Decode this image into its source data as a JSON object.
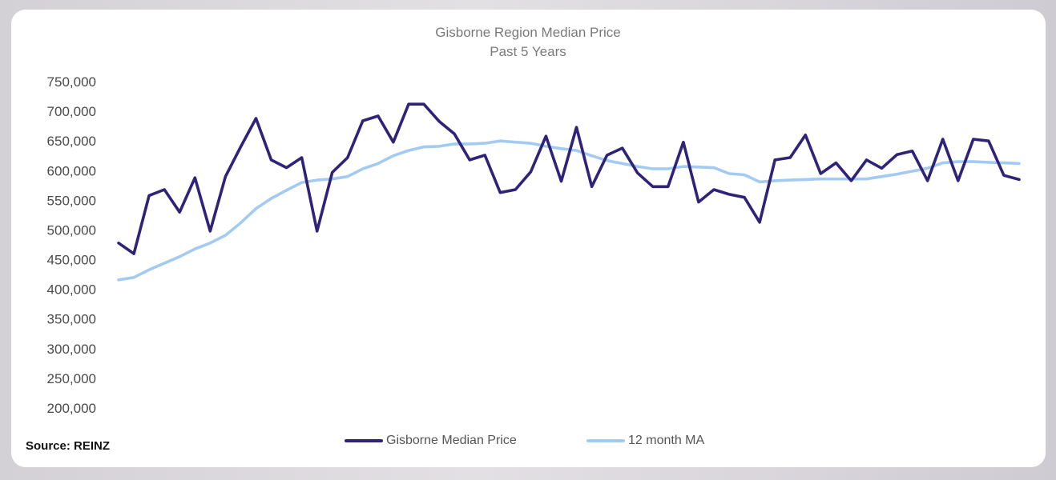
{
  "chart_data": {
    "type": "line",
    "title": "Gisborne Region Median Price",
    "subtitle": "Past 5 Years",
    "source": "Source: REINZ",
    "ylim": [
      200000,
      750000
    ],
    "yticks": [
      "750,000",
      "700,000",
      "650,000",
      "600,000",
      "550,000",
      "500,000",
      "450,000",
      "400,000",
      "350,000",
      "300,000",
      "250,000",
      "200,000"
    ],
    "ytick_values": [
      750000,
      700000,
      650000,
      600000,
      550000,
      500000,
      450000,
      400000,
      350000,
      300000,
      250000,
      200000
    ],
    "grid": "vertical drop lines per month",
    "legend_position": "bottom",
    "series": [
      {
        "name": "Gisborne Median Price",
        "color": "#2e2379",
        "values": [
          478000,
          460000,
          558000,
          568000,
          530000,
          588000,
          498000,
          590000,
          640000,
          688000,
          618000,
          605000,
          622000,
          498000,
          597000,
          622000,
          684000,
          692000,
          648000,
          712000,
          712000,
          683000,
          662000,
          618000,
          626000,
          563000,
          568000,
          598000,
          658000,
          582000,
          673000,
          573000,
          626000,
          638000,
          596000,
          573000,
          573000,
          648000,
          547000,
          568000,
          560000,
          555000,
          513000,
          618000,
          622000,
          660000,
          595000,
          613000,
          583000,
          618000,
          604000,
          627000,
          633000,
          583000,
          653000,
          583000,
          653000,
          650000,
          592000,
          585000
        ]
      },
      {
        "name": "12 month MA",
        "color": "#a3cbf2",
        "values": [
          416000,
          420000,
          433000,
          444000,
          455000,
          468000,
          478000,
          491000,
          512000,
          536000,
          553000,
          567000,
          580000,
          584000,
          586000,
          590000,
          603000,
          612000,
          625000,
          634000,
          640000,
          641000,
          645000,
          645000,
          646000,
          650000,
          648000,
          646000,
          641000,
          637000,
          634000,
          625000,
          617000,
          612000,
          607000,
          603000,
          603000,
          607000,
          606000,
          605000,
          595000,
          593000,
          581000,
          583000,
          584000,
          585000,
          586000,
          586000,
          586000,
          586000,
          590000,
          594000,
          599000,
          604000,
          613000,
          615000,
          615000,
          614000,
          613000,
          612000
        ]
      }
    ]
  }
}
